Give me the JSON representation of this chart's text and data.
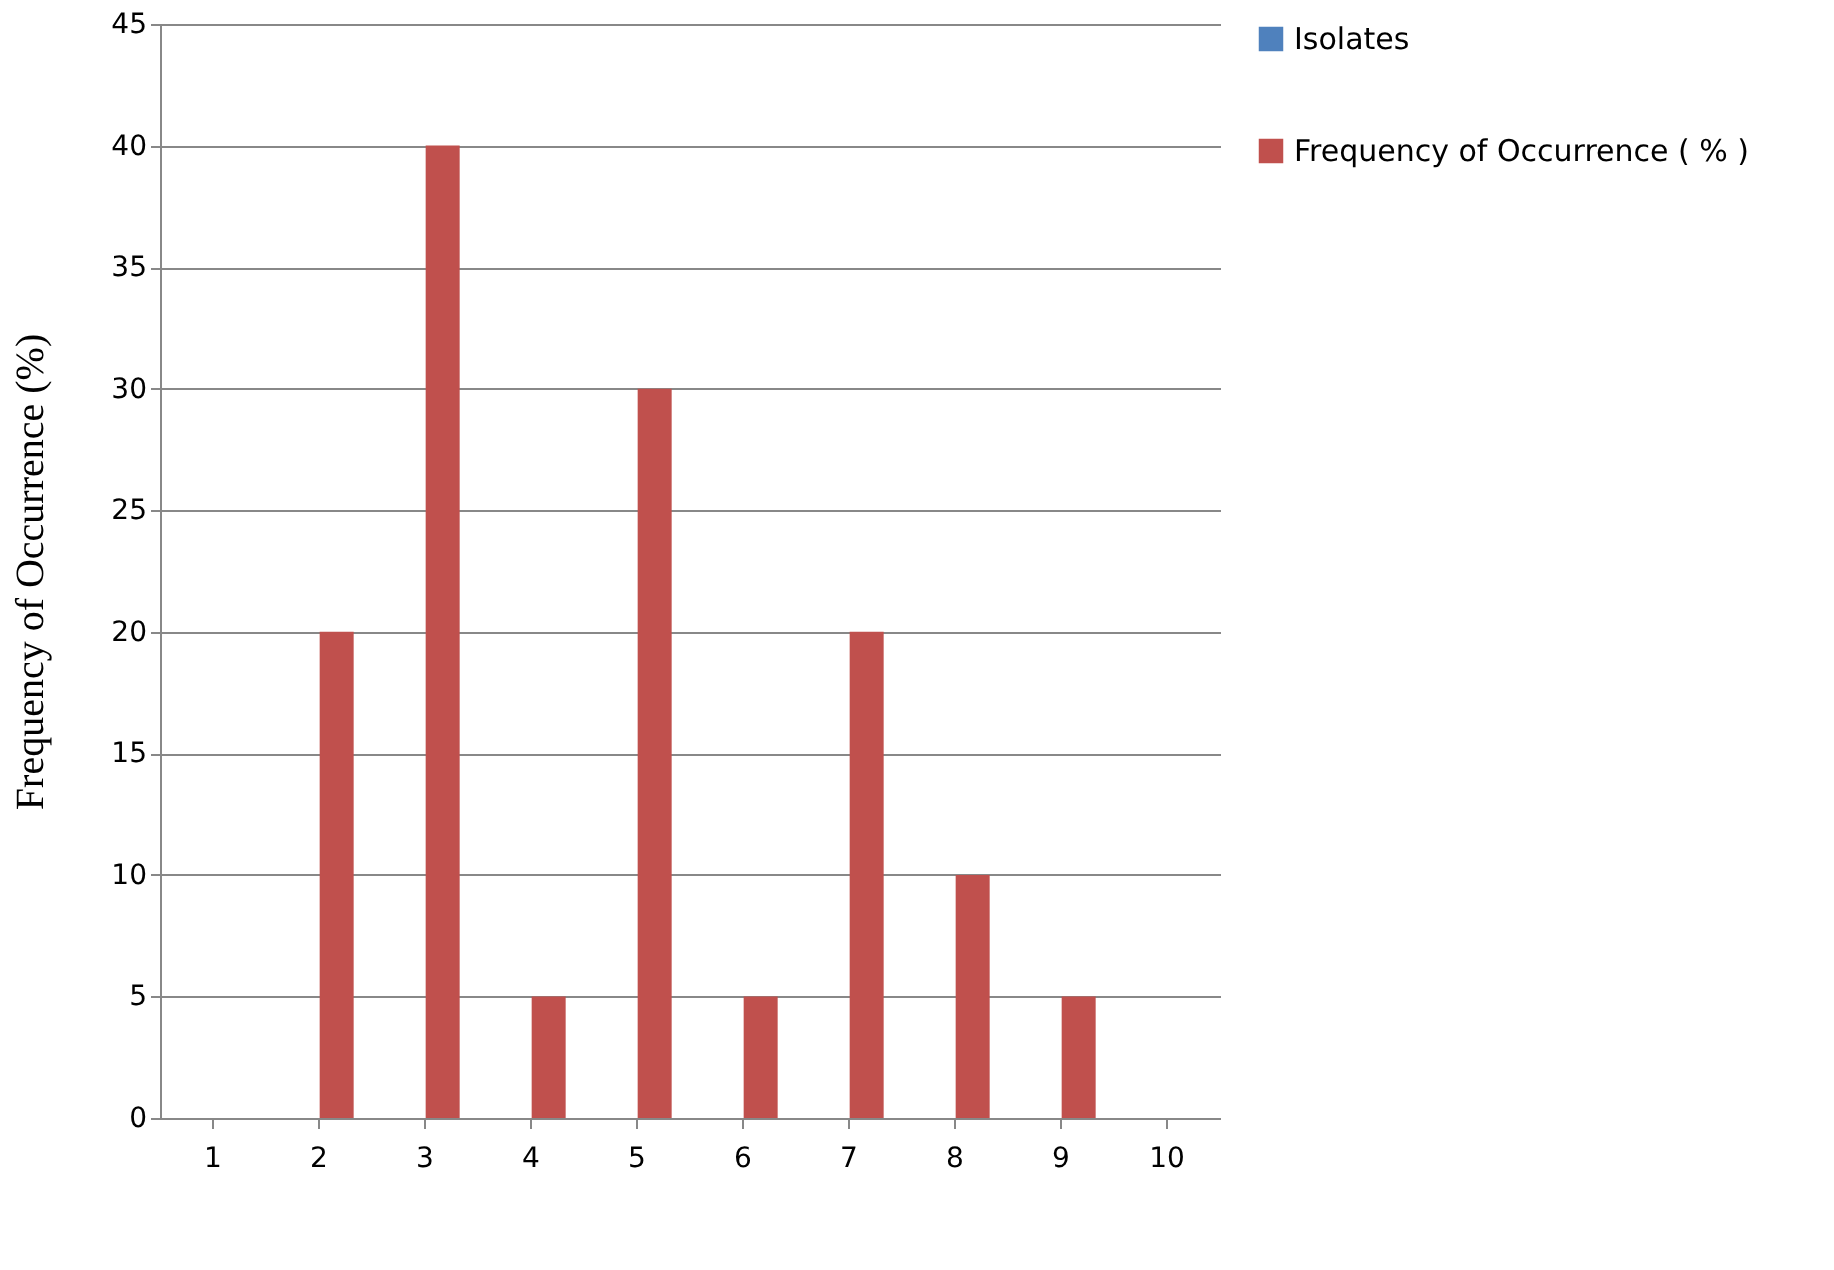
{
  "chart_data": {
    "type": "bar",
    "ylabel": "Frequency of Occurrence (%)",
    "categories": [
      "1",
      "2",
      "3",
      "4",
      "5",
      "6",
      "7",
      "8",
      "9",
      "10"
    ],
    "series": [
      {
        "name": "Isolates",
        "color": "#4f81bd",
        "values": [
          null,
          null,
          null,
          null,
          null,
          null,
          null,
          null,
          null,
          null
        ]
      },
      {
        "name": "Frequency of Occurrence ( % )",
        "color": "#c0504d",
        "values": [
          0,
          20,
          40,
          5,
          30,
          5,
          20,
          10,
          5,
          0
        ]
      }
    ],
    "ylim": [
      0,
      45
    ],
    "yticks": [
      0,
      5,
      10,
      15,
      20,
      25,
      30,
      35,
      40,
      45
    ],
    "grid": "y",
    "legend": "right"
  }
}
